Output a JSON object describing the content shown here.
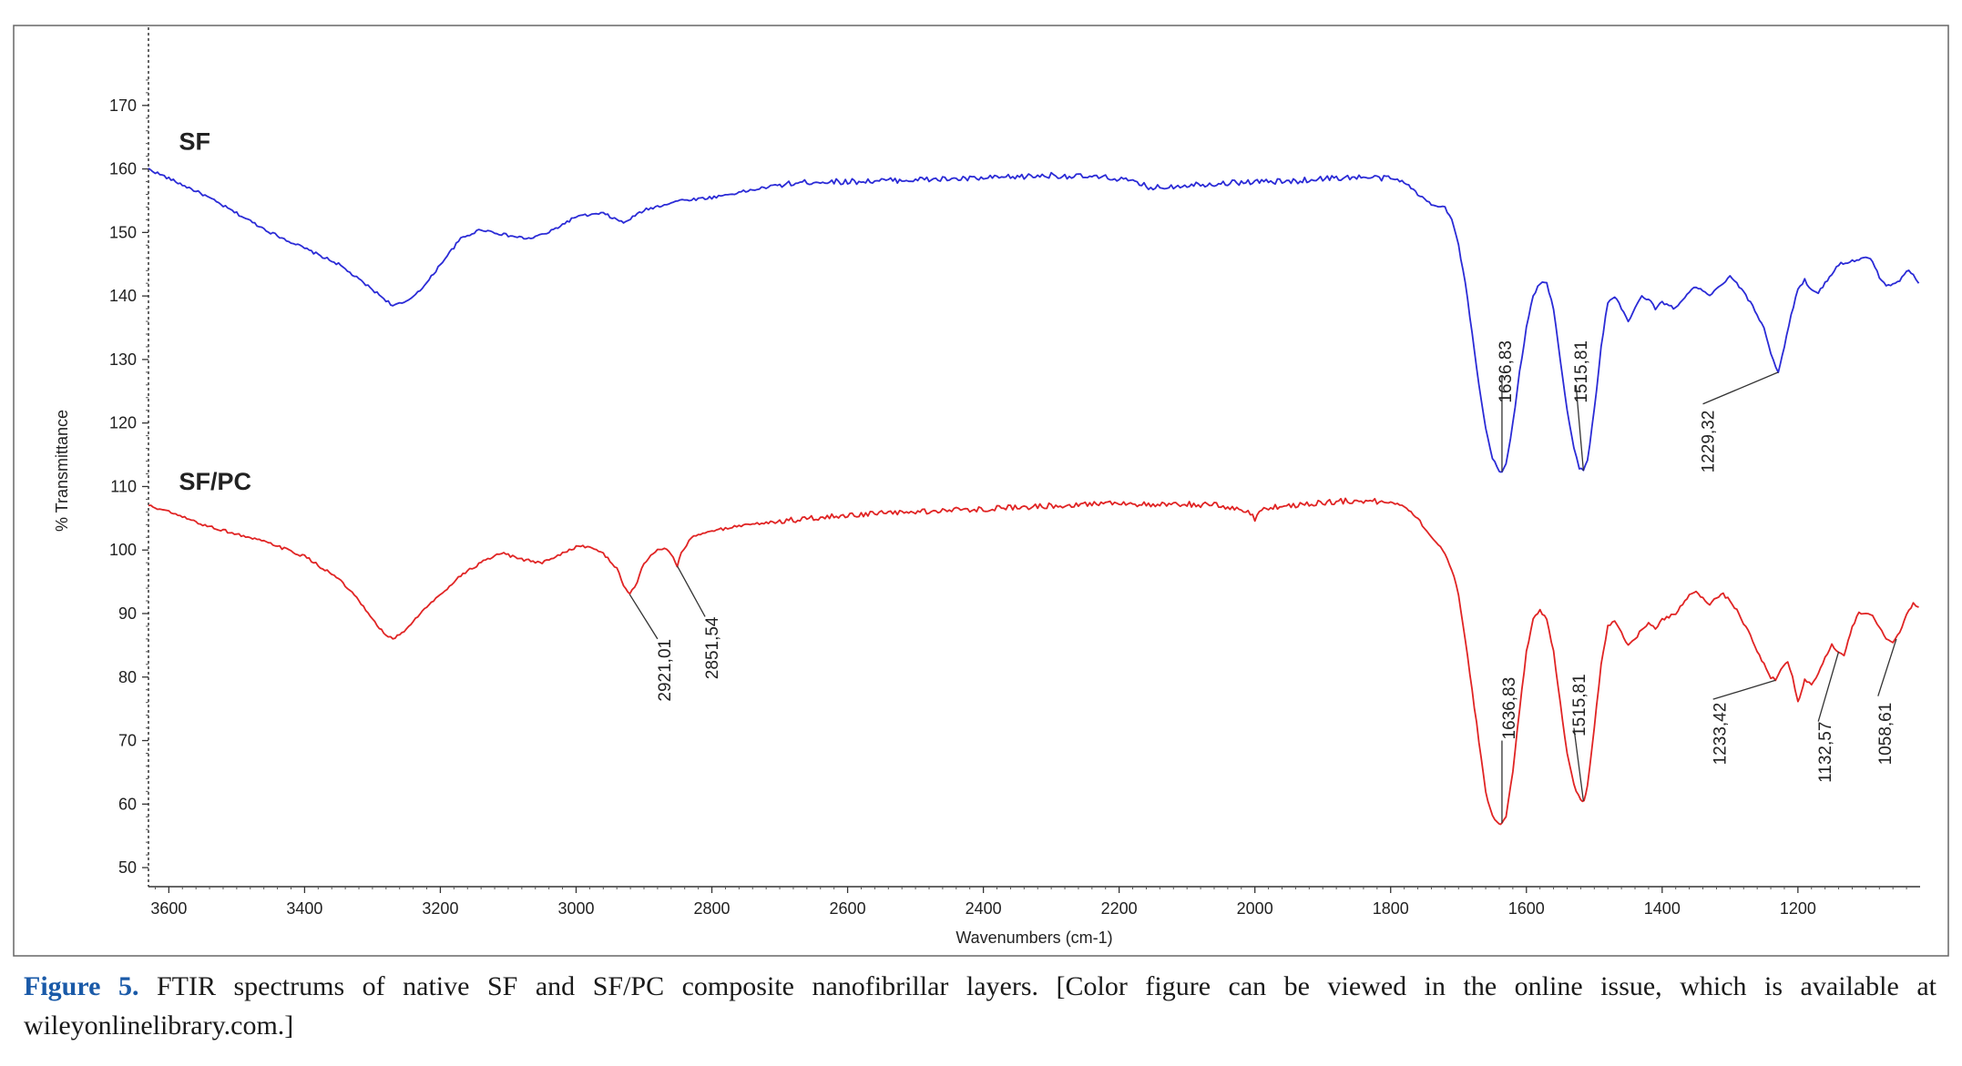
{
  "chart_data": {
    "type": "line",
    "title": "",
    "xlabel": "Wavenumbers (cm-1)",
    "ylabel": "% Transmittance",
    "xlim": [
      3630,
      1020
    ],
    "ylim": [
      47,
      178
    ],
    "x_ticks": [
      3600,
      3400,
      3200,
      3000,
      2800,
      2600,
      2400,
      2200,
      2000,
      1800,
      1600,
      1400,
      1200
    ],
    "y_ticks": [
      50,
      60,
      70,
      80,
      90,
      100,
      110,
      120,
      130,
      140,
      150,
      160,
      170
    ],
    "series": [
      {
        "name": "SF",
        "color": "#2b2bd6",
        "points": [
          [
            3630,
            160
          ],
          [
            3600,
            158.5
          ],
          [
            3550,
            156
          ],
          [
            3500,
            153
          ],
          [
            3450,
            150
          ],
          [
            3400,
            147.5
          ],
          [
            3350,
            145
          ],
          [
            3300,
            141
          ],
          [
            3270,
            138.5
          ],
          [
            3250,
            139
          ],
          [
            3220,
            142
          ],
          [
            3200,
            145
          ],
          [
            3170,
            149
          ],
          [
            3140,
            150.5
          ],
          [
            3100,
            149.5
          ],
          [
            3070,
            149
          ],
          [
            3040,
            150
          ],
          [
            3000,
            152.5
          ],
          [
            2960,
            153
          ],
          [
            2930,
            151.5
          ],
          [
            2900,
            153.5
          ],
          [
            2850,
            155
          ],
          [
            2800,
            155.5
          ],
          [
            2750,
            156.5
          ],
          [
            2700,
            157.5
          ],
          [
            2650,
            158
          ],
          [
            2600,
            158
          ],
          [
            2500,
            158.3
          ],
          [
            2400,
            158.5
          ],
          [
            2300,
            159
          ],
          [
            2200,
            158.5
          ],
          [
            2150,
            157
          ],
          [
            2100,
            157.5
          ],
          [
            2000,
            158
          ],
          [
            1950,
            158
          ],
          [
            1900,
            158.5
          ],
          [
            1850,
            158.7
          ],
          [
            1800,
            158.5
          ],
          [
            1780,
            158
          ],
          [
            1760,
            156
          ],
          [
            1740,
            154.5
          ],
          [
            1720,
            154
          ],
          [
            1710,
            152
          ],
          [
            1700,
            148
          ],
          [
            1690,
            142
          ],
          [
            1680,
            134
          ],
          [
            1670,
            126
          ],
          [
            1660,
            119
          ],
          [
            1650,
            114.5
          ],
          [
            1640,
            112.3
          ],
          [
            1636,
            112.3
          ],
          [
            1630,
            113.5
          ],
          [
            1620,
            120
          ],
          [
            1610,
            128
          ],
          [
            1600,
            135
          ],
          [
            1590,
            140
          ],
          [
            1580,
            142
          ],
          [
            1570,
            142
          ],
          [
            1560,
            138
          ],
          [
            1550,
            130
          ],
          [
            1540,
            122
          ],
          [
            1530,
            116
          ],
          [
            1522,
            113
          ],
          [
            1516,
            112.5
          ],
          [
            1510,
            114
          ],
          [
            1500,
            122
          ],
          [
            1490,
            132
          ],
          [
            1480,
            139
          ],
          [
            1470,
            140
          ],
          [
            1460,
            138
          ],
          [
            1450,
            136
          ],
          [
            1440,
            138
          ],
          [
            1430,
            140
          ],
          [
            1420,
            139.5
          ],
          [
            1410,
            138
          ],
          [
            1400,
            139
          ],
          [
            1390,
            138.5
          ],
          [
            1380,
            138
          ],
          [
            1370,
            139.5
          ],
          [
            1350,
            141.5
          ],
          [
            1330,
            140
          ],
          [
            1310,
            142
          ],
          [
            1300,
            143
          ],
          [
            1290,
            142
          ],
          [
            1270,
            139
          ],
          [
            1250,
            135
          ],
          [
            1240,
            131
          ],
          [
            1229,
            128
          ],
          [
            1220,
            132
          ],
          [
            1210,
            137
          ],
          [
            1200,
            141
          ],
          [
            1190,
            142.5
          ],
          [
            1180,
            141
          ],
          [
            1170,
            140.5
          ],
          [
            1160,
            142
          ],
          [
            1140,
            145
          ],
          [
            1120,
            145.5
          ],
          [
            1100,
            146
          ],
          [
            1090,
            145.5
          ],
          [
            1080,
            143
          ],
          [
            1070,
            141.5
          ],
          [
            1060,
            142
          ],
          [
            1050,
            142.5
          ],
          [
            1040,
            144
          ],
          [
            1030,
            143.5
          ],
          [
            1022,
            142
          ]
        ]
      },
      {
        "name": "SF/PC",
        "color": "#e02424",
        "points": [
          [
            3630,
            107
          ],
          [
            3600,
            106
          ],
          [
            3550,
            104
          ],
          [
            3500,
            102.5
          ],
          [
            3450,
            101
          ],
          [
            3400,
            99
          ],
          [
            3350,
            95.5
          ],
          [
            3320,
            92
          ],
          [
            3300,
            89
          ],
          [
            3280,
            86.5
          ],
          [
            3270,
            86
          ],
          [
            3250,
            87.5
          ],
          [
            3230,
            90
          ],
          [
            3200,
            93
          ],
          [
            3170,
            96
          ],
          [
            3140,
            98
          ],
          [
            3110,
            99.5
          ],
          [
            3080,
            98.5
          ],
          [
            3050,
            98
          ],
          [
            3020,
            99.5
          ],
          [
            3000,
            100.5
          ],
          [
            2980,
            100.5
          ],
          [
            2960,
            99.5
          ],
          [
            2940,
            97
          ],
          [
            2930,
            94.5
          ],
          [
            2921,
            93
          ],
          [
            2910,
            95
          ],
          [
            2900,
            98
          ],
          [
            2880,
            100
          ],
          [
            2870,
            100.3
          ],
          [
            2860,
            99.5
          ],
          [
            2851,
            97.5
          ],
          [
            2845,
            99.5
          ],
          [
            2830,
            102
          ],
          [
            2800,
            103
          ],
          [
            2750,
            104
          ],
          [
            2700,
            104.5
          ],
          [
            2650,
            105
          ],
          [
            2600,
            105.5
          ],
          [
            2500,
            106
          ],
          [
            2400,
            106.5
          ],
          [
            2300,
            107
          ],
          [
            2200,
            107.5
          ],
          [
            2150,
            107
          ],
          [
            2100,
            107.2
          ],
          [
            2050,
            107
          ],
          [
            2010,
            106
          ],
          [
            2000,
            105
          ],
          [
            1990,
            106.5
          ],
          [
            1950,
            107
          ],
          [
            1900,
            107.5
          ],
          [
            1850,
            107.8
          ],
          [
            1800,
            107.5
          ],
          [
            1780,
            107
          ],
          [
            1760,
            105
          ],
          [
            1740,
            102
          ],
          [
            1720,
            99.5
          ],
          [
            1710,
            97
          ],
          [
            1700,
            93
          ],
          [
            1690,
            86
          ],
          [
            1680,
            78
          ],
          [
            1670,
            70
          ],
          [
            1660,
            62
          ],
          [
            1650,
            58
          ],
          [
            1640,
            57
          ],
          [
            1636,
            57
          ],
          [
            1630,
            58
          ],
          [
            1620,
            65
          ],
          [
            1610,
            75
          ],
          [
            1600,
            84
          ],
          [
            1590,
            89
          ],
          [
            1580,
            90.5
          ],
          [
            1570,
            89
          ],
          [
            1560,
            84
          ],
          [
            1550,
            76
          ],
          [
            1540,
            68
          ],
          [
            1530,
            63
          ],
          [
            1520,
            60.5
          ],
          [
            1515,
            60.5
          ],
          [
            1510,
            63
          ],
          [
            1500,
            72
          ],
          [
            1490,
            82
          ],
          [
            1480,
            88
          ],
          [
            1470,
            89
          ],
          [
            1460,
            87
          ],
          [
            1450,
            85
          ],
          [
            1440,
            86
          ],
          [
            1430,
            87.5
          ],
          [
            1420,
            88.5
          ],
          [
            1410,
            87.5
          ],
          [
            1400,
            89
          ],
          [
            1390,
            89.5
          ],
          [
            1380,
            90
          ],
          [
            1370,
            91.5
          ],
          [
            1360,
            93
          ],
          [
            1350,
            93.3
          ],
          [
            1340,
            92.5
          ],
          [
            1330,
            91.5
          ],
          [
            1320,
            92.5
          ],
          [
            1310,
            93
          ],
          [
            1300,
            92
          ],
          [
            1290,
            90.5
          ],
          [
            1280,
            88.5
          ],
          [
            1270,
            86.5
          ],
          [
            1260,
            84
          ],
          [
            1250,
            82
          ],
          [
            1240,
            80
          ],
          [
            1233,
            79.5
          ],
          [
            1225,
            81
          ],
          [
            1215,
            82.5
          ],
          [
            1208,
            80
          ],
          [
            1200,
            76
          ],
          [
            1195,
            77.5
          ],
          [
            1190,
            79.5
          ],
          [
            1180,
            79
          ],
          [
            1170,
            80.5
          ],
          [
            1160,
            83
          ],
          [
            1150,
            85
          ],
          [
            1140,
            84
          ],
          [
            1132,
            83.5
          ],
          [
            1120,
            88
          ],
          [
            1110,
            90
          ],
          [
            1100,
            90
          ],
          [
            1090,
            89.5
          ],
          [
            1080,
            88
          ],
          [
            1070,
            86
          ],
          [
            1060,
            85.5
          ],
          [
            1050,
            87
          ],
          [
            1040,
            90
          ],
          [
            1030,
            91.5
          ],
          [
            1022,
            91
          ]
        ]
      }
    ],
    "series_labels": [
      {
        "text": "SF",
        "x": 3585,
        "y": 163
      },
      {
        "text": "SF/PC",
        "x": 3585,
        "y": 109.5
      }
    ],
    "annotations": [
      {
        "text": "1636,83",
        "series": "SF",
        "x": 1636,
        "y": 112.3,
        "line_to_y": 127.5,
        "label_dx": 10,
        "label_top_y": 133
      },
      {
        "text": "1515,81",
        "series": "SF",
        "x": 1516,
        "y": 112.5,
        "line_to_x": 1527,
        "line_to_y": 126,
        "label_dx": 12,
        "label_top_y": 133
      },
      {
        "text": "1229,32",
        "series": "SF",
        "x": 1229,
        "y": 128,
        "line_to_x": 1340,
        "line_to_y": 123,
        "label_dx": 12,
        "label_top_y": 122
      },
      {
        "text": "2921,01",
        "series": "SF/PC",
        "x": 2921,
        "y": 93,
        "line_to_x": 2880,
        "line_to_y": 86,
        "label_dx": 14,
        "label_top_y": 86
      },
      {
        "text": "2851,54",
        "series": "SF/PC",
        "x": 2851,
        "y": 97.5,
        "line_to_x": 2810,
        "line_to_y": 89.5,
        "label_dx": 14,
        "label_top_y": 89.5
      },
      {
        "text": "1636,83",
        "series": "SF/PC",
        "x": 1636,
        "y": 57,
        "line_to_y": 70,
        "label_dx": 14,
        "label_top_y": 80
      },
      {
        "text": "1515,81",
        "series": "SF/PC",
        "x": 1516,
        "y": 60.5,
        "line_to_x": 1530,
        "line_to_y": 72,
        "label_dx": 12,
        "label_top_y": 80.5
      },
      {
        "text": "1233,42",
        "series": "SF/PC",
        "x": 1233,
        "y": 79.5,
        "line_to_x": 1325,
        "line_to_y": 76.5,
        "label_dx": 14,
        "label_top_y": 76
      },
      {
        "text": "1132,57",
        "series": "SF/PC",
        "x": 1140,
        "y": 84,
        "line_to_x": 1170,
        "line_to_y": 73,
        "label_dx": 14,
        "label_top_y": 73
      },
      {
        "text": "1058,61",
        "series": "SF/PC",
        "x": 1055,
        "y": 86,
        "line_to_x": 1082,
        "line_to_y": 77,
        "label_dx": 14,
        "label_top_y": 76
      }
    ]
  },
  "caption": {
    "figure_label": "Figure 5.",
    "text": " FTIR spectrums of native SF and SF/PC composite nanofibrillar layers. [Color figure can be viewed in the online issue, which is available at wileyonlinelibrary.com.]"
  }
}
